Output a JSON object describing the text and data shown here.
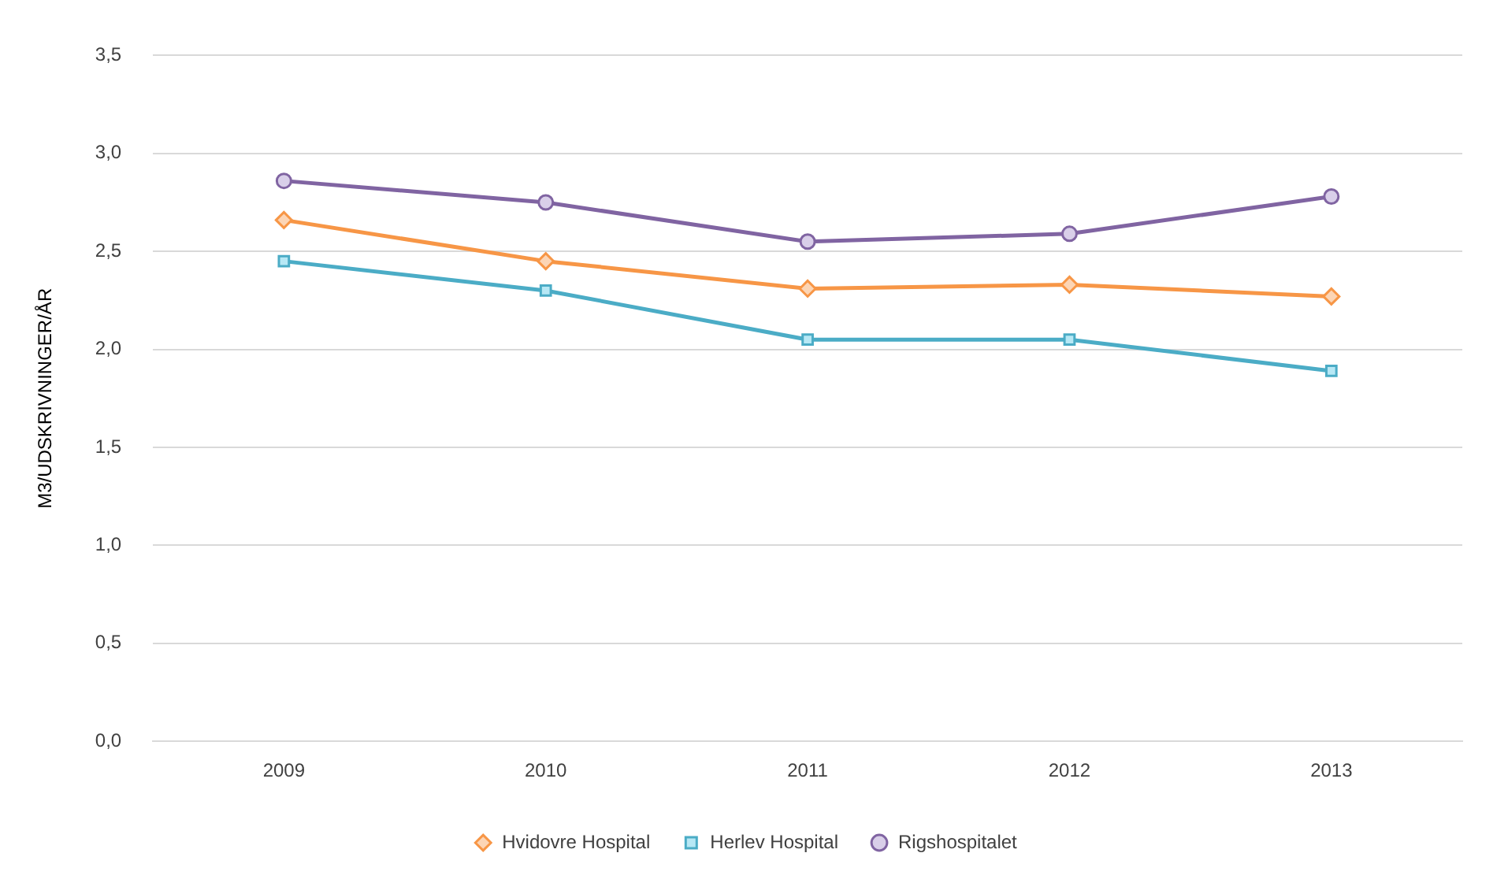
{
  "chart_data": {
    "type": "line",
    "ylabel": "M3/UDSKRIVNINGER/ÅR",
    "categories": [
      "2009",
      "2010",
      "2011",
      "2012",
      "2013"
    ],
    "series": [
      {
        "name": "Hvidovre Hospital",
        "color": "#f79646",
        "marker": "diamond",
        "values": [
          2.66,
          2.45,
          2.31,
          2.33,
          2.27
        ]
      },
      {
        "name": "Herlev Hospital",
        "color": "#4bacc6",
        "marker": "square",
        "values": [
          2.45,
          2.3,
          2.05,
          2.05,
          1.89
        ]
      },
      {
        "name": "Rigshospitalet",
        "color": "#8064a2",
        "marker": "circle",
        "values": [
          2.86,
          2.75,
          2.55,
          2.59,
          2.78
        ]
      }
    ],
    "ylim": [
      0,
      3.5
    ],
    "yticks": [
      {
        "value": 0,
        "label": "0,0"
      },
      {
        "value": 0.5,
        "label": "0,5"
      },
      {
        "value": 1,
        "label": "1,0"
      },
      {
        "value": 1.5,
        "label": "1,5"
      },
      {
        "value": 2,
        "label": "2,0"
      },
      {
        "value": 2.5,
        "label": "2,5"
      },
      {
        "value": 3,
        "label": "3,0"
      },
      {
        "value": 3.5,
        "label": "3,5"
      }
    ],
    "grid": "y",
    "legend": "bottom"
  }
}
